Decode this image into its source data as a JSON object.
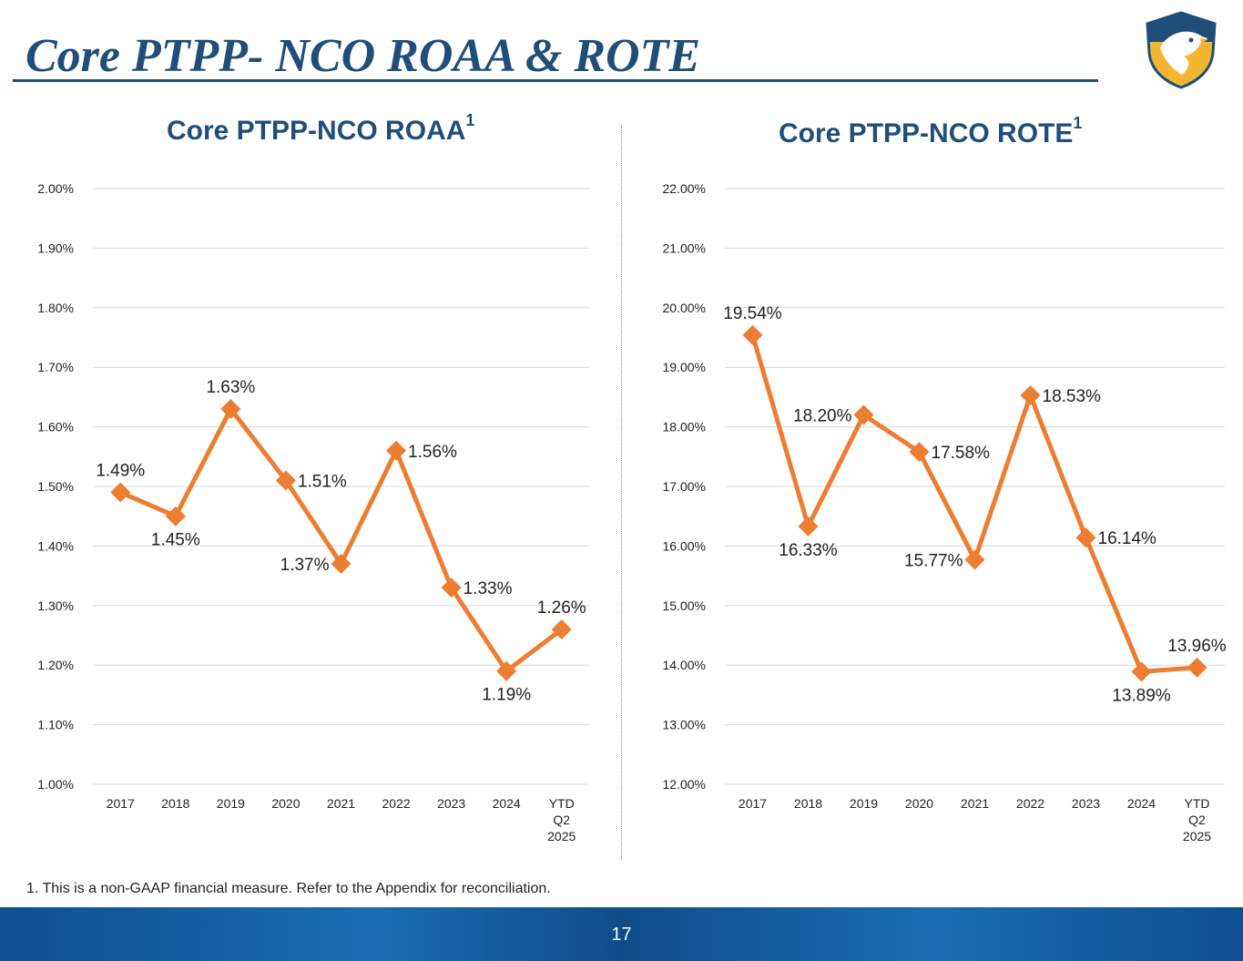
{
  "page": {
    "title": "Core PTPP- NCO ROAA & ROTE",
    "footnote": "1. This is a non-GAAP financial measure. Refer to the Appendix for reconciliation.",
    "page_number": "17",
    "logo_icon": "eagle-shield-icon"
  },
  "colors": {
    "title": "#1f4e79",
    "series": "#ed7d31",
    "grid": "#d9d9d9",
    "footer": "#1a6db3"
  },
  "chart_data": [
    {
      "type": "line",
      "title": "Core PTPP-NCO ROAA",
      "title_superscript": "1",
      "categories": [
        "2017",
        "2018",
        "2019",
        "2020",
        "2021",
        "2022",
        "2023",
        "2024",
        "YTD Q2 2025"
      ],
      "series": [
        {
          "name": "Core PTPP-NCO ROAA",
          "values": [
            1.49,
            1.45,
            1.63,
            1.51,
            1.37,
            1.56,
            1.33,
            1.19,
            1.26
          ],
          "labels": [
            "1.49%",
            "1.45%",
            "1.63%",
            "1.51%",
            "1.37%",
            "1.56%",
            "1.33%",
            "1.19%",
            "1.26%"
          ],
          "label_pos": [
            "above",
            "below",
            "above",
            "right",
            "left",
            "right",
            "right",
            "below",
            "above"
          ]
        }
      ],
      "ylim": [
        1.0,
        2.0
      ],
      "yticks": [
        1.0,
        1.1,
        1.2,
        1.3,
        1.4,
        1.5,
        1.6,
        1.7,
        1.8,
        1.9,
        2.0
      ],
      "ytick_labels": [
        "1.00%",
        "1.10%",
        "1.20%",
        "1.30%",
        "1.40%",
        "1.50%",
        "1.60%",
        "1.70%",
        "1.80%",
        "1.90%",
        "2.00%"
      ],
      "grid": true,
      "legend": "none"
    },
    {
      "type": "line",
      "title": "Core PTPP-NCO ROTE",
      "title_superscript": "1",
      "categories": [
        "2017",
        "2018",
        "2019",
        "2020",
        "2021",
        "2022",
        "2023",
        "2024",
        "YTD Q2 2025"
      ],
      "series": [
        {
          "name": "Core PTPP-NCO ROTE",
          "values": [
            19.54,
            16.33,
            18.2,
            17.58,
            15.77,
            18.53,
            16.14,
            13.89,
            13.96
          ],
          "labels": [
            "19.54%",
            "16.33%",
            "18.20%",
            "17.58%",
            "15.77%",
            "18.53%",
            "16.14%",
            "13.89%",
            "13.96%"
          ],
          "label_pos": [
            "above",
            "below",
            "left",
            "right",
            "left",
            "right",
            "right",
            "below",
            "above"
          ]
        }
      ],
      "ylim": [
        12.0,
        22.0
      ],
      "yticks": [
        12,
        13,
        14,
        15,
        16,
        17,
        18,
        19,
        20,
        21,
        22
      ],
      "ytick_labels": [
        "12.00%",
        "13.00%",
        "14.00%",
        "15.00%",
        "16.00%",
        "17.00%",
        "18.00%",
        "19.00%",
        "20.00%",
        "21.00%",
        "22.00%"
      ],
      "grid": true,
      "legend": "none"
    }
  ]
}
